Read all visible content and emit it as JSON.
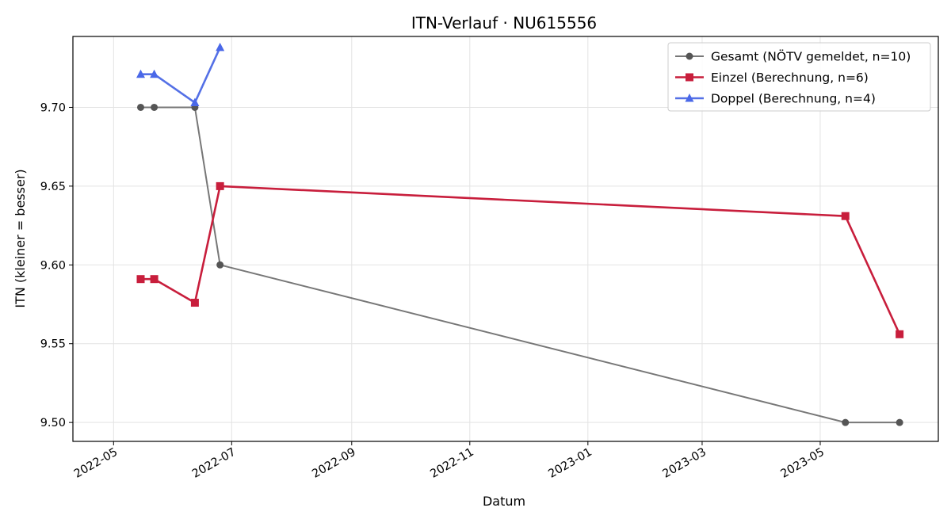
{
  "chart_data": {
    "type": "line",
    "title": "ITN-Verlauf · NU615556",
    "xlabel": "Datum",
    "ylabel": "ITN  (kleiner = besser)",
    "ylim": [
      9.488,
      9.745
    ],
    "xlim": [
      "2022-04-10",
      "2023-07-01"
    ],
    "grid": true,
    "legend_position": "top-right",
    "x_ticks": [
      "2022-05",
      "2022-07",
      "2022-09",
      "2022-11",
      "2023-01",
      "2023-03",
      "2023-05"
    ],
    "y_ticks": [
      "9.50",
      "9.55",
      "9.60",
      "9.65",
      "9.70"
    ],
    "series": [
      {
        "name": "Gesamt (NÖTV gemeldet, n=10)",
        "color": "#777777",
        "marker": "circle",
        "marker_color": "#555555",
        "points": [
          {
            "x": "2022-05-15",
            "y": 9.7
          },
          {
            "x": "2022-05-22",
            "y": 9.7
          },
          {
            "x": "2022-06-12",
            "y": 9.7
          },
          {
            "x": "2022-06-25",
            "y": 9.6
          },
          {
            "x": "2023-05-14",
            "y": 9.5
          },
          {
            "x": "2023-06-11",
            "y": 9.5
          }
        ]
      },
      {
        "name": "Einzel (Berechnung, n=6)",
        "color": "#c81e3c",
        "marker": "square",
        "marker_color": "#c81e3c",
        "points": [
          {
            "x": "2022-05-15",
            "y": 9.591
          },
          {
            "x": "2022-05-22",
            "y": 9.591
          },
          {
            "x": "2022-06-12",
            "y": 9.576
          },
          {
            "x": "2022-06-25",
            "y": 9.65
          },
          {
            "x": "2023-05-14",
            "y": 9.631
          },
          {
            "x": "2023-06-11",
            "y": 9.556
          }
        ]
      },
      {
        "name": "Doppel (Berechnung, n=4)",
        "color": "#5470e6",
        "marker": "triangle",
        "marker_color": "#4a68e8",
        "points": [
          {
            "x": "2022-05-15",
            "y": 9.721
          },
          {
            "x": "2022-05-22",
            "y": 9.721
          },
          {
            "x": "2022-06-12",
            "y": 9.703
          },
          {
            "x": "2022-06-25",
            "y": 9.738
          }
        ]
      }
    ]
  }
}
